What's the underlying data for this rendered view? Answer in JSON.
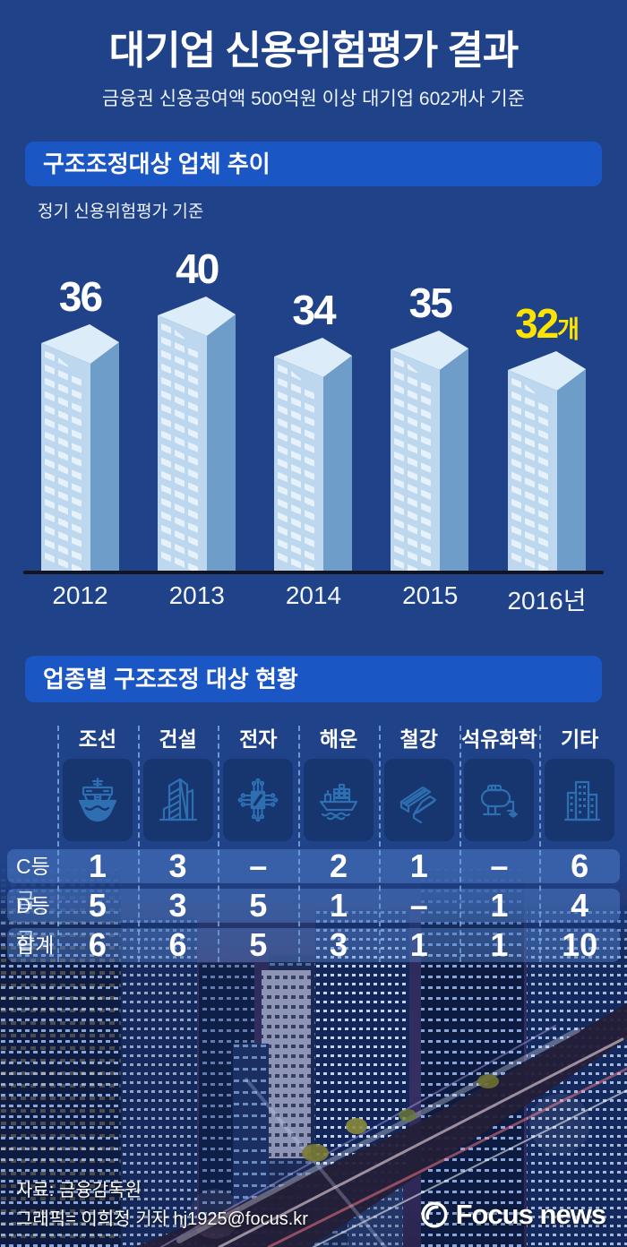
{
  "header": {
    "title": "대기업 신용위험평가 결과",
    "subtitle": "금융권 신용공여액 500억원 이상 대기업 602개사 기준"
  },
  "section1": {
    "heading": "구조조정대상 업체 추이",
    "note": "정기 신용위험평가 기준"
  },
  "chart_data": {
    "type": "bar",
    "title": "구조조정대상 업체 추이",
    "subtitle": "정기 신용위험평가 기준",
    "categories": [
      "2012",
      "2013",
      "2014",
      "2015",
      "2016년"
    ],
    "values": [
      36,
      40,
      34,
      35,
      32
    ],
    "last_value_suffix": "개",
    "ylim": [
      0,
      40
    ],
    "grid": false,
    "bar_style": "isometric-building",
    "value_label_color": "#ffffff",
    "last_value_label_color": "#ffe400"
  },
  "section2": {
    "heading": "업종별 구조조정 대상 현황",
    "columns": [
      {
        "label": "조선",
        "icon": "ship-front-icon"
      },
      {
        "label": "건설",
        "icon": "construction-building-icon"
      },
      {
        "label": "전자",
        "icon": "semiconductor-chip-icon"
      },
      {
        "label": "해운",
        "icon": "container-ship-icon"
      },
      {
        "label": "철강",
        "icon": "steel-beam-icon"
      },
      {
        "label": "석유화학",
        "icon": "petrochemical-tank-icon"
      },
      {
        "label": "기타",
        "icon": "city-buildings-icon"
      }
    ],
    "rows": [
      {
        "label": "C등급",
        "values": [
          "1",
          "3",
          "–",
          "2",
          "1",
          "–",
          "6"
        ]
      },
      {
        "label": "D등급",
        "values": [
          "5",
          "3",
          "5",
          "1",
          "–",
          "1",
          "4"
        ]
      },
      {
        "label": "합계",
        "values": [
          "6",
          "6",
          "5",
          "3",
          "1",
          "1",
          "10"
        ]
      }
    ]
  },
  "footer": {
    "source": "자료: 금융감독원",
    "credit": "그래픽= 이희정 기자 hj1925@focus.kr",
    "logo_text": "Focus news"
  },
  "colors": {
    "background": "#1f4289",
    "pill_blue": "#1b56c5",
    "accent_yellow": "#ffe400",
    "axis_line": "#141420",
    "building_front": "#bdd8ee",
    "building_side": "#6f9dca",
    "building_top": "#dcecf8",
    "window_front": "#e9f3fb",
    "window_side": "#a6bbd1",
    "icon_stroke": "#2e6fb2",
    "icon_box": "#17356e",
    "dashed_separator": "#96c8f5",
    "row_band": "rgba(96,146,224,0.38)"
  }
}
